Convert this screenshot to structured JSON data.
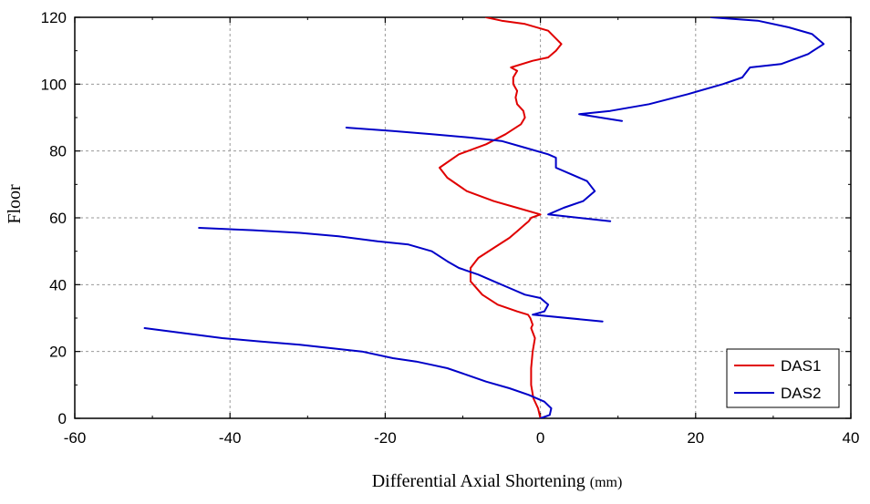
{
  "chart_data": {
    "type": "line",
    "title": "",
    "xlabel": "Differential Axial Shortening",
    "xlabel_unit": "(mm)",
    "ylabel": "Floor",
    "xlim": [
      -60,
      40
    ],
    "ylim": [
      0,
      120
    ],
    "xticks": [
      -60,
      -40,
      -20,
      0,
      20,
      40
    ],
    "yticks": [
      0,
      20,
      40,
      60,
      80,
      100,
      120
    ],
    "xtick_labels": [
      "-60",
      "-40",
      "-20",
      "0",
      "20",
      "40"
    ],
    "ytick_labels": [
      "0",
      "20",
      "40",
      "60",
      "80",
      "100",
      "120"
    ],
    "grid": true,
    "legend": "bottom-right",
    "series": [
      {
        "name": "DAS1",
        "color": "#e00000",
        "points": [
          [
            0.0,
            0
          ],
          [
            -0.3,
            3
          ],
          [
            -0.9,
            6
          ],
          [
            -1.2,
            10
          ],
          [
            -1.2,
            15
          ],
          [
            -1.0,
            20
          ],
          [
            -0.7,
            24
          ],
          [
            -1.2,
            27
          ],
          [
            -1.0,
            28
          ],
          [
            -1.3,
            30
          ],
          [
            -1.6,
            31
          ],
          [
            -3.0,
            32
          ],
          [
            -5.5,
            34
          ],
          [
            -7.5,
            37
          ],
          [
            -9.0,
            41
          ],
          [
            -9.0,
            45
          ],
          [
            -8.0,
            48
          ],
          [
            -6.0,
            51
          ],
          [
            -4.0,
            54
          ],
          [
            -3.0,
            56
          ],
          [
            -2.0,
            58
          ],
          [
            -1.5,
            59
          ],
          [
            -1.2,
            60
          ],
          [
            0.0,
            61
          ],
          [
            -3.0,
            63
          ],
          [
            -6.0,
            65
          ],
          [
            -9.5,
            68
          ],
          [
            -12.0,
            72
          ],
          [
            -13.0,
            75
          ],
          [
            -10.5,
            79
          ],
          [
            -7.0,
            82
          ],
          [
            -4.5,
            85
          ],
          [
            -2.5,
            88
          ],
          [
            -2.0,
            90
          ],
          [
            -2.2,
            92
          ],
          [
            -3.0,
            94
          ],
          [
            -3.2,
            96
          ],
          [
            -3.0,
            98
          ],
          [
            -3.5,
            100
          ],
          [
            -3.5,
            102
          ],
          [
            -3.0,
            104
          ],
          [
            -3.8,
            105
          ],
          [
            -1.0,
            107
          ],
          [
            1.0,
            108
          ],
          [
            2.0,
            110
          ],
          [
            2.7,
            112
          ],
          [
            1.0,
            116
          ],
          [
            -2.0,
            118
          ],
          [
            -5.0,
            119
          ],
          [
            -7.0,
            120
          ]
        ]
      },
      {
        "name": "DAS2",
        "color": "#0000c8",
        "segments": [
          [
            [
              0.0,
              0
            ],
            [
              1.2,
              1
            ],
            [
              1.4,
              3
            ],
            [
              0.5,
              5
            ],
            [
              -1.5,
              7
            ],
            [
              -4.0,
              9
            ],
            [
              -7.0,
              11
            ],
            [
              -9.5,
              13
            ],
            [
              -12.0,
              15
            ],
            [
              -14.0,
              16
            ],
            [
              -16.0,
              17
            ],
            [
              -19.0,
              18
            ],
            [
              -23.0,
              20
            ],
            [
              -27.0,
              21
            ],
            [
              -31.0,
              22
            ],
            [
              -36.0,
              23
            ],
            [
              -41.0,
              24
            ],
            [
              -46.0,
              25.5
            ],
            [
              -51.0,
              27
            ]
          ],
          [
            [
              8.0,
              29
            ],
            [
              -1.0,
              31
            ],
            [
              0.5,
              32
            ],
            [
              1.0,
              34
            ],
            [
              0.0,
              36
            ],
            [
              -2.0,
              37
            ],
            [
              -4.0,
              39
            ],
            [
              -6.0,
              41
            ],
            [
              -8.0,
              43
            ],
            [
              -10.5,
              45
            ],
            [
              -12.0,
              47
            ],
            [
              -14.0,
              50
            ],
            [
              -17.0,
              52
            ],
            [
              -21.0,
              53
            ],
            [
              -26.0,
              54.5
            ],
            [
              -31.0,
              55.5
            ],
            [
              -37.0,
              56.3
            ],
            [
              -44.0,
              57
            ]
          ],
          [
            [
              9.0,
              59
            ],
            [
              1.0,
              61
            ],
            [
              3.0,
              63
            ],
            [
              5.5,
              65
            ],
            [
              7.0,
              68
            ],
            [
              6.0,
              71
            ],
            [
              4.0,
              73
            ],
            [
              2.0,
              75
            ],
            [
              2.0,
              78
            ],
            [
              1.0,
              79
            ],
            [
              -2.0,
              81
            ],
            [
              -5.0,
              83
            ],
            [
              -9.0,
              84
            ],
            [
              -14.0,
              85
            ],
            [
              -19.0,
              86
            ],
            [
              -25.0,
              87
            ]
          ],
          [
            [
              10.5,
              89
            ],
            [
              5.0,
              91
            ],
            [
              9.0,
              92
            ],
            [
              14.0,
              94
            ],
            [
              19.0,
              97
            ],
            [
              23.5,
              100
            ],
            [
              26.0,
              102
            ],
            [
              27.0,
              105
            ],
            [
              31.0,
              106
            ],
            [
              34.5,
              109
            ],
            [
              36.5,
              112
            ],
            [
              35.0,
              115
            ],
            [
              32.0,
              117
            ],
            [
              28.0,
              119
            ],
            [
              22.0,
              120
            ]
          ]
        ]
      }
    ]
  }
}
